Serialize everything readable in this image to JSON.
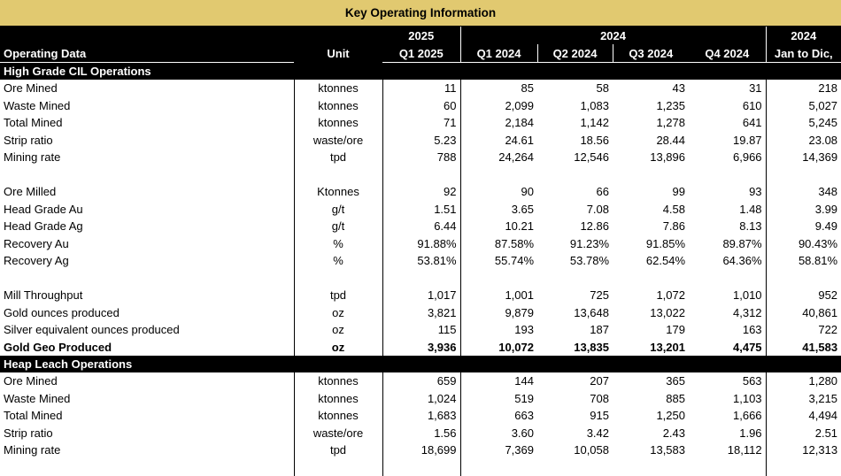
{
  "title": "Key Operating Information",
  "header": {
    "operating_data": "Operating Data",
    "unit": "Unit",
    "year_2025": "2025",
    "year_2024": "2024",
    "year_2024_total": "2024",
    "columns": [
      "Q1 2025",
      "Q1 2024",
      "Q2 2024",
      "Q3 2024",
      "Q4 2024",
      "Jan to Dic,"
    ]
  },
  "sections": [
    {
      "name": "High Grade CIL Operations",
      "rows": [
        {
          "label": "Ore Mined",
          "unit": "ktonnes",
          "values": [
            "11",
            "85",
            "58",
            "43",
            "31",
            "218"
          ]
        },
        {
          "label": "Waste Mined",
          "unit": "ktonnes",
          "values": [
            "60",
            "2,099",
            "1,083",
            "1,235",
            "610",
            "5,027"
          ]
        },
        {
          "label": "Total Mined",
          "unit": "ktonnes",
          "values": [
            "71",
            "2,184",
            "1,142",
            "1,278",
            "641",
            "5,245"
          ]
        },
        {
          "label": "Strip ratio",
          "unit": "waste/ore",
          "values": [
            "5.23",
            "24.61",
            "18.56",
            "28.44",
            "19.87",
            "23.08"
          ]
        },
        {
          "label": "Mining rate",
          "unit": "tpd",
          "values": [
            "788",
            "24,264",
            "12,546",
            "13,896",
            "6,966",
            "14,369"
          ]
        },
        {
          "label": "",
          "unit": "",
          "values": [
            "",
            "",
            "",
            "",
            "",
            ""
          ]
        },
        {
          "label": "Ore Milled",
          "unit": "Ktonnes",
          "values": [
            "92",
            "90",
            "66",
            "99",
            "93",
            "348"
          ]
        },
        {
          "label": "Head Grade Au",
          "unit": "g/t",
          "values": [
            "1.51",
            "3.65",
            "7.08",
            "4.58",
            "1.48",
            "3.99"
          ]
        },
        {
          "label": "Head Grade Ag",
          "unit": "g/t",
          "values": [
            "6.44",
            "10.21",
            "12.86",
            "7.86",
            "8.13",
            "9.49"
          ]
        },
        {
          "label": "Recovery Au",
          "unit": "%",
          "values": [
            "91.88%",
            "87.58%",
            "91.23%",
            "91.85%",
            "89.87%",
            "90.43%"
          ]
        },
        {
          "label": "Recovery Ag",
          "unit": "%",
          "values": [
            "53.81%",
            "55.74%",
            "53.78%",
            "62.54%",
            "64.36%",
            "58.81%"
          ]
        },
        {
          "label": "",
          "unit": "",
          "values": [
            "",
            "",
            "",
            "",
            "",
            ""
          ]
        },
        {
          "label": "Mill Throughput",
          "unit": "tpd",
          "values": [
            "1,017",
            "1,001",
            "725",
            "1,072",
            "1,010",
            "952"
          ]
        },
        {
          "label": "Gold ounces produced",
          "unit": "oz",
          "values": [
            "3,821",
            "9,879",
            "13,648",
            "13,022",
            "4,312",
            "40,861"
          ]
        },
        {
          "label": "Silver equivalent ounces produced",
          "unit": "oz",
          "values": [
            "115",
            "193",
            "187",
            "179",
            "163",
            "722"
          ]
        },
        {
          "label": "Gold Geo Produced",
          "unit": "oz",
          "bold": true,
          "values": [
            "3,936",
            "10,072",
            "13,835",
            "13,201",
            "4,475",
            "41,583"
          ]
        }
      ]
    },
    {
      "name": "Heap Leach Operations",
      "rows": [
        {
          "label": "Ore Mined",
          "unit": "ktonnes",
          "values": [
            "659",
            "144",
            "207",
            "365",
            "563",
            "1,280"
          ]
        },
        {
          "label": "Waste Mined",
          "unit": "ktonnes",
          "values": [
            "1,024",
            "519",
            "708",
            "885",
            "1,103",
            "3,215"
          ]
        },
        {
          "label": "Total Mined",
          "unit": "ktonnes",
          "values": [
            "1,683",
            "663",
            "915",
            "1,250",
            "1,666",
            "4,494"
          ]
        },
        {
          "label": "Strip ratio",
          "unit": "waste/ore",
          "values": [
            "1.56",
            "3.60",
            "3.42",
            "2.43",
            "1.96",
            "2.51"
          ]
        },
        {
          "label": "Mining rate",
          "unit": "tpd",
          "values": [
            "18,699",
            "7,369",
            "10,058",
            "13,583",
            "18,112",
            "12,313"
          ]
        },
        {
          "label": "",
          "unit": "",
          "values": [
            "",
            "",
            "",
            "",
            "",
            ""
          ]
        }
      ]
    }
  ]
}
